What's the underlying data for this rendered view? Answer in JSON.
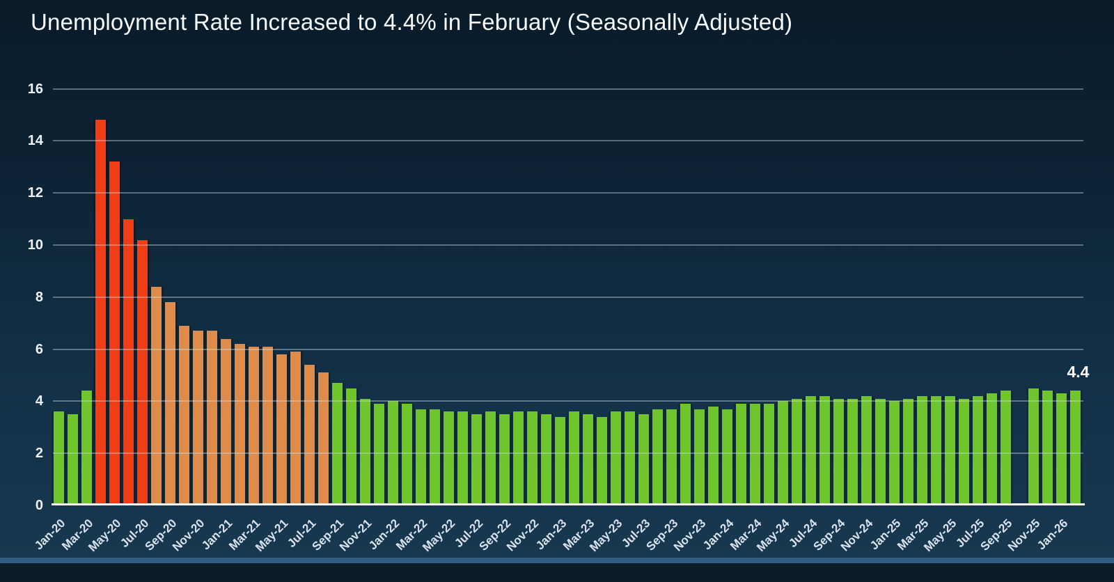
{
  "title": "Unemployment Rate Increased to 4.4% in February (Seasonally Adjusted)",
  "palette": {
    "green": "#70c42c",
    "red": "#f13d15",
    "orange": "#de8c4b",
    "background_top": "#0a1b29",
    "background_bottom": "#18384f",
    "footer_strip": "#2e5c82",
    "gridline": "rgba(210,225,236,0.40)",
    "axis_line": "#ffffff",
    "title_color": "#f7fafc",
    "ytick_color": "#edf2f8",
    "xtick_color": "#d9e3ef"
  },
  "chart_data": {
    "type": "bar",
    "title": "Unemployment Rate Increased to 4.4% in February (Seasonally Adjusted)",
    "xlabel": "",
    "ylabel": "",
    "ylim": [
      0,
      16
    ],
    "yticks": [
      0,
      2,
      4,
      6,
      8,
      10,
      12,
      14,
      16
    ],
    "grid": true,
    "x_tick_every": 2,
    "categories": [
      "Jan-20",
      "Feb-20",
      "Mar-20",
      "Apr-20",
      "May-20",
      "Jun-20",
      "Jul-20",
      "Aug-20",
      "Sep-20",
      "Oct-20",
      "Nov-20",
      "Dec-20",
      "Jan-21",
      "Feb-21",
      "Mar-21",
      "Apr-21",
      "May-21",
      "Jun-21",
      "Jul-21",
      "Aug-21",
      "Sep-21",
      "Oct-21",
      "Nov-21",
      "Dec-21",
      "Jan-22",
      "Feb-22",
      "Mar-22",
      "Apr-22",
      "May-22",
      "Jun-22",
      "Jul-22",
      "Aug-22",
      "Sep-22",
      "Oct-22",
      "Nov-22",
      "Dec-22",
      "Jan-23",
      "Feb-23",
      "Mar-23",
      "Apr-23",
      "May-23",
      "Jun-23",
      "Jul-23",
      "Aug-23",
      "Sep-23",
      "Oct-23",
      "Nov-23",
      "Dec-23",
      "Jan-24",
      "Feb-24",
      "Mar-24",
      "Apr-24",
      "May-24",
      "Jun-24",
      "Jul-24",
      "Aug-24",
      "Sep-24",
      "Oct-24",
      "Nov-24",
      "Dec-24",
      "Jan-25",
      "Feb-25",
      "Mar-25",
      "Apr-25",
      "May-25",
      "Jun-25",
      "Jul-25",
      "Aug-25",
      "Sep-25",
      "Oct-25",
      "Nov-25",
      "Dec-25",
      "Jan-26",
      "Feb-26"
    ],
    "values": [
      3.6,
      3.5,
      4.4,
      14.8,
      13.2,
      11.0,
      10.2,
      8.4,
      7.8,
      6.9,
      6.7,
      6.7,
      6.4,
      6.2,
      6.1,
      6.1,
      5.8,
      5.9,
      5.4,
      5.1,
      4.7,
      4.5,
      4.1,
      3.9,
      4.0,
      3.9,
      3.7,
      3.7,
      3.6,
      3.6,
      3.5,
      3.6,
      3.5,
      3.6,
      3.6,
      3.5,
      3.4,
      3.6,
      3.5,
      3.4,
      3.6,
      3.6,
      3.5,
      3.7,
      3.7,
      3.9,
      3.7,
      3.8,
      3.7,
      3.9,
      3.9,
      3.9,
      4.0,
      4.1,
      4.2,
      4.2,
      4.1,
      4.1,
      4.2,
      4.1,
      4.0,
      4.1,
      4.2,
      4.2,
      4.2,
      4.1,
      4.2,
      4.3,
      4.4,
      null,
      4.5,
      4.4,
      4.3,
      4.4
    ],
    "missing_categories": [
      "Oct-25"
    ],
    "color_segments": [
      {
        "start": "Jan-20",
        "end": "Mar-20",
        "color": "green"
      },
      {
        "start": "Apr-20",
        "end": "Jul-20",
        "color": "red"
      },
      {
        "start": "Aug-20",
        "end": "Aug-21",
        "color": "orange"
      },
      {
        "start": "Sep-21",
        "end": "Feb-26",
        "color": "green"
      }
    ],
    "legend": [],
    "annotation": {
      "text": "4.4",
      "category": "Feb-26"
    }
  }
}
